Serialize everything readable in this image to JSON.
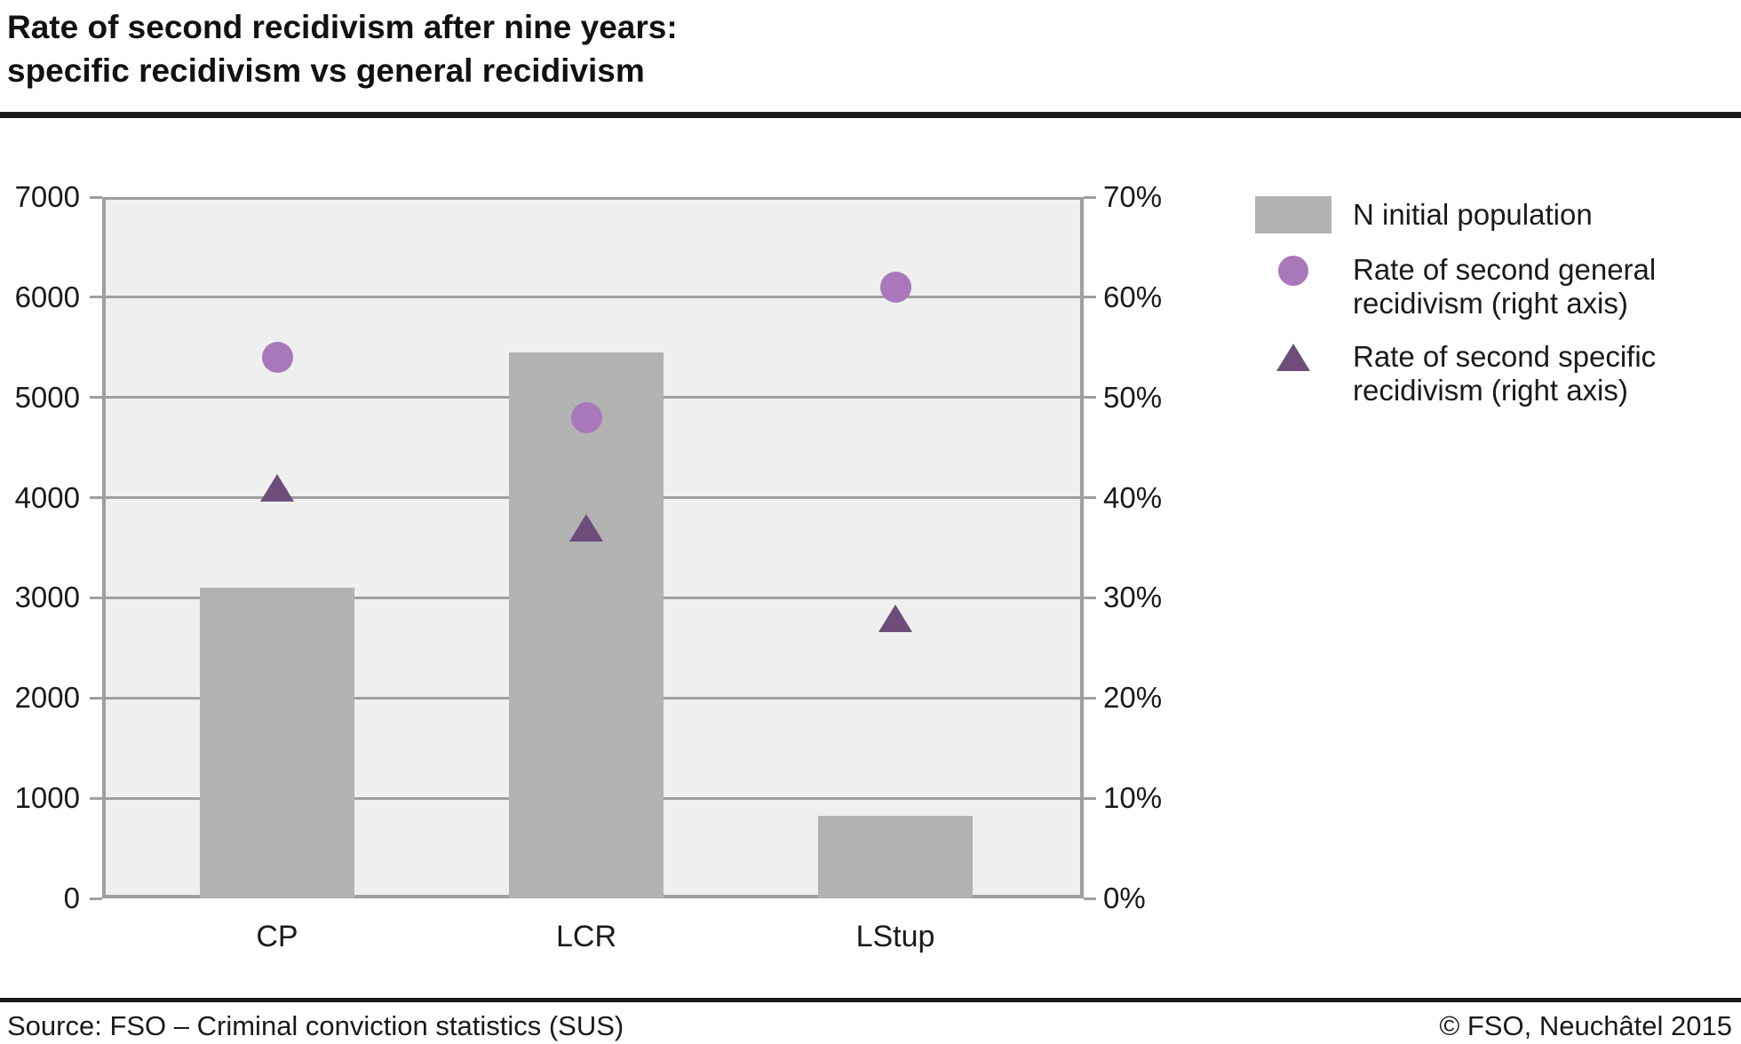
{
  "page": {
    "title_line1": "Rate of second recidivism after nine years:",
    "title_line2": "specific recidivism vs general recidivism",
    "footer": {
      "source": "Source: FSO – Criminal conviction statistics (SUS)",
      "copyright": "© FSO, Neuchâtel 2015"
    }
  },
  "chart_data": {
    "type": "bar",
    "title": "Rate of second recidivism after nine years: specific recidivism vs general recidivism",
    "categories": [
      "CP",
      "LCR",
      "LStup"
    ],
    "series": [
      {
        "name": "N initial population",
        "render": "bar",
        "axis": "left",
        "values": [
          3100,
          5450,
          820
        ],
        "color": "#b2b2b2"
      },
      {
        "name": "Rate of second general recidivism (right axis)",
        "render": "scatter",
        "marker": "circle",
        "axis": "right",
        "values": [
          54,
          48,
          61
        ],
        "color": "#a878bb"
      },
      {
        "name": "Rate of second specific recidivism (right axis)",
        "render": "scatter",
        "marker": "triangle",
        "axis": "right",
        "values": [
          41,
          37,
          28
        ],
        "color": "#6e4d7b"
      }
    ],
    "left_axis": {
      "min": 0,
      "max": 7000,
      "step": 1000,
      "tick_labels": [
        "0",
        "1000",
        "2000",
        "3000",
        "4000",
        "5000",
        "6000",
        "7000"
      ]
    },
    "right_axis": {
      "min": 0,
      "max": 70,
      "step": 10,
      "tick_labels": [
        "0%",
        "10%",
        "20%",
        "30%",
        "40%",
        "50%",
        "60%",
        "70%"
      ]
    },
    "grid": true,
    "legend_position": "right",
    "colors": {
      "plot_background": "#f0efef",
      "gridline": "#9f9f9f",
      "text": "#1a1a1a"
    }
  }
}
